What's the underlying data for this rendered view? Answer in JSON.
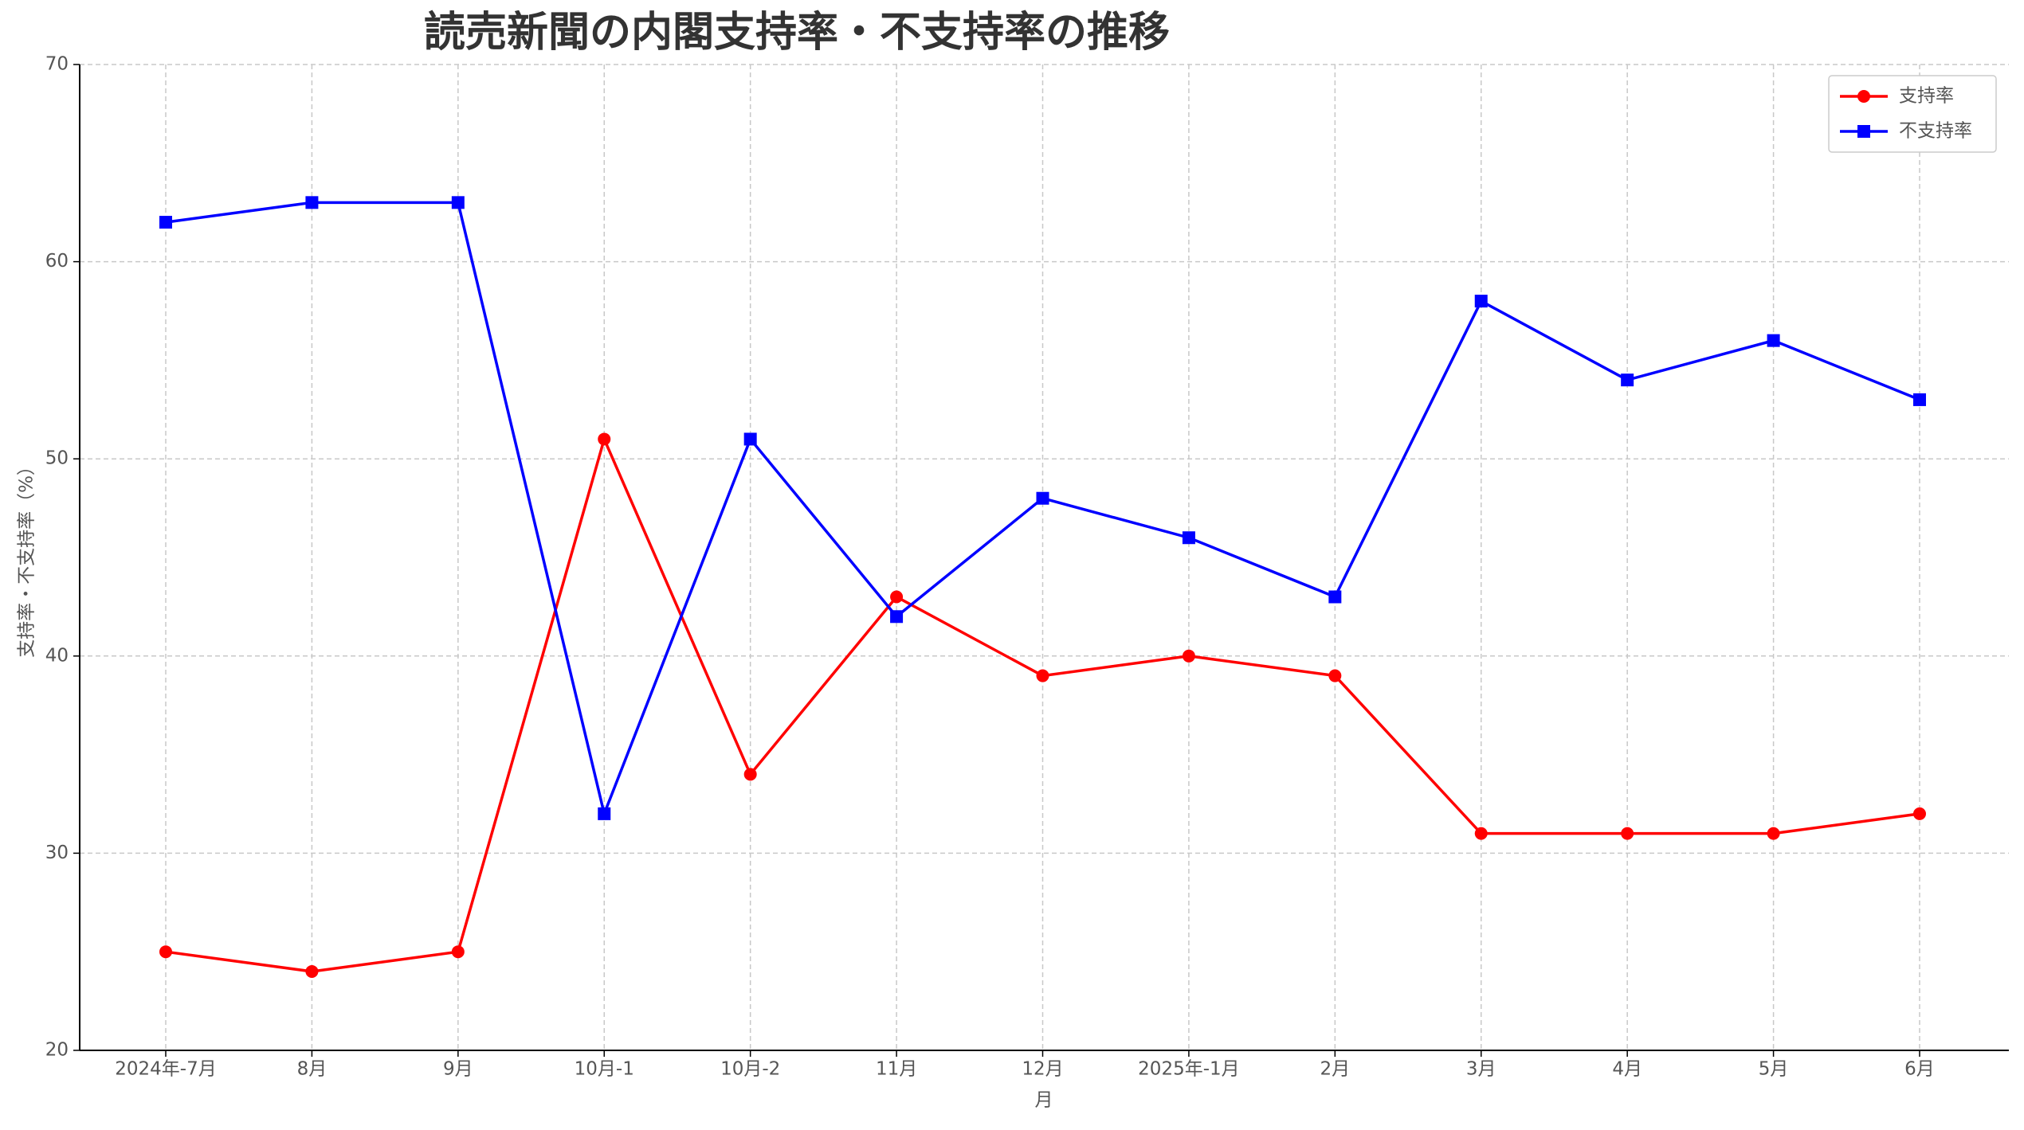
{
  "chart_data": {
    "type": "line",
    "title": "読売新聞の内閣支持率・不支持率の推移",
    "x_label": "月",
    "y_label": "支持率・不支持率（%）",
    "categories": [
      "2024年-7月",
      "8月",
      "9月",
      "10月-1",
      "10月-2",
      "11月",
      "12月",
      "2025年-1月",
      "2月",
      "3月",
      "4月",
      "5月",
      "6月"
    ],
    "series": [
      {
        "name": "支持率",
        "color": "#ff0000",
        "marker": "circle",
        "values": [
          25,
          24,
          25,
          51,
          34,
          43,
          39,
          40,
          39,
          31,
          31,
          31,
          32
        ]
      },
      {
        "name": "不支持率",
        "color": "#0000ff",
        "marker": "square",
        "values": [
          62,
          63,
          63,
          32,
          51,
          42,
          48,
          46,
          43,
          58,
          54,
          56,
          53
        ]
      }
    ],
    "ylim": [
      20,
      70
    ],
    "yticks": [
      20,
      30,
      40,
      50,
      60,
      70
    ],
    "grid": true,
    "legend": "upper right"
  }
}
